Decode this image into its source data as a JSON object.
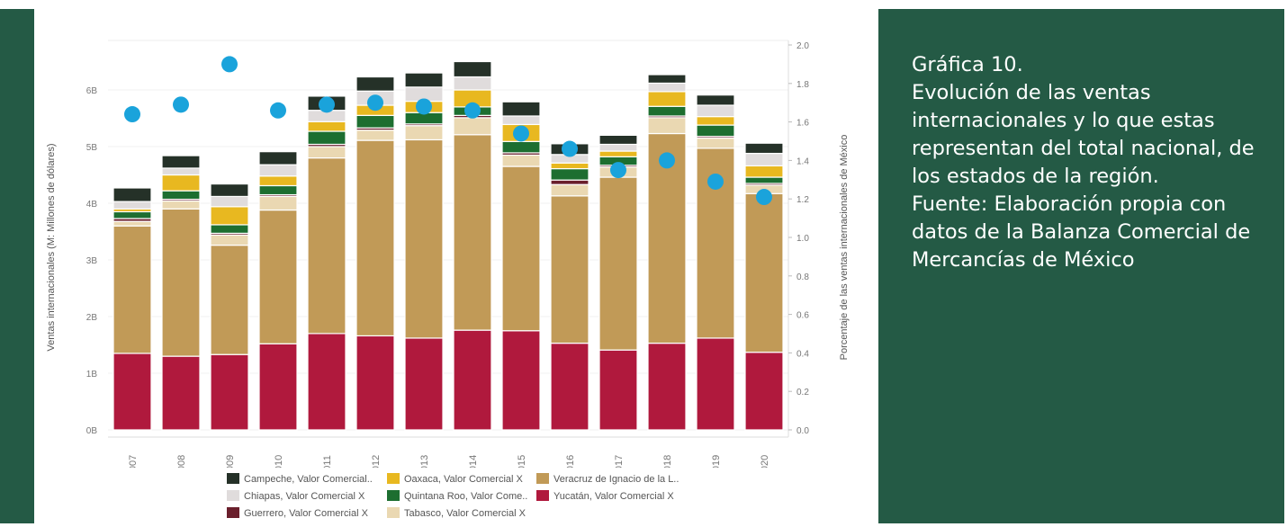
{
  "caption": {
    "line1": "Gráfica 10.",
    "line2": "Evolución de las ventas internacionales y lo que estas representan del total nacional, de los estados de la región.",
    "line3": "Fuente: Elaboración propia con datos de la Balanza Comercial de Mercancías de México"
  },
  "colors": {
    "band": "#245a45",
    "Yucatan": "#b0193d",
    "Veracruz": "#c19a57",
    "Tabasco": "#ead8b2",
    "Guerrero": "#6a1f2c",
    "QuintanaRoo": "#1d6e30",
    "Oaxaca": "#e8b820",
    "Chiapas": "#e0dcdc",
    "Campeche": "#253128",
    "points": "#1aa3db"
  },
  "chart_data": {
    "type": "bar",
    "stacked": true,
    "xlabel": "",
    "ylabel": "Ventas internacionales (M: Millones de dólares)",
    "y2label": "Porcentaje de las ventas internacionales de México",
    "ylim": [
      0,
      6.5
    ],
    "y2lim": [
      0,
      2.0
    ],
    "y_ticks": [
      "0B",
      "1B",
      "2B",
      "3B",
      "4B",
      "5B",
      "6B"
    ],
    "y_tick_values": [
      0,
      1,
      2,
      3,
      4,
      5,
      6
    ],
    "y2_ticks": [
      "0.0",
      "0.2",
      "0.4",
      "0.6",
      "0.8",
      "1.0",
      "1.2",
      "1.4",
      "1.6",
      "1.8",
      "2.0"
    ],
    "y2_tick_values": [
      0,
      0.2,
      0.4,
      0.6,
      0.8,
      1.0,
      1.2,
      1.4,
      1.6,
      1.8,
      2.0
    ],
    "categories": [
      "2007",
      "2008",
      "2009",
      "2010",
      "2011",
      "2012",
      "2013",
      "2014",
      "2015",
      "2016",
      "2017",
      "2018",
      "2019",
      "2020"
    ],
    "series": [
      {
        "name": "Yucatán, Valor Comercial X",
        "key": "Yucatan",
        "values": [
          1.35,
          1.3,
          1.33,
          1.52,
          1.7,
          1.66,
          1.62,
          1.76,
          1.75,
          1.53,
          1.41,
          1.53,
          1.62,
          1.37
        ]
      },
      {
        "name": "Veracruz de Ignacio de la L..",
        "key": "Veracruz",
        "values": [
          2.25,
          2.6,
          1.93,
          2.36,
          3.1,
          3.45,
          3.5,
          3.45,
          2.9,
          2.6,
          3.05,
          3.7,
          3.35,
          2.8
        ]
      },
      {
        "name": "Tabasco, Valor Comercial X",
        "key": "Tabasco",
        "values": [
          0.08,
          0.14,
          0.18,
          0.24,
          0.2,
          0.18,
          0.25,
          0.3,
          0.2,
          0.2,
          0.18,
          0.28,
          0.18,
          0.15
        ]
      },
      {
        "name": "Guerrero, Valor Comercial X",
        "key": "Guerrero",
        "values": [
          0.05,
          0.03,
          0.03,
          0.03,
          0.04,
          0.04,
          0.03,
          0.04,
          0.04,
          0.08,
          0.03,
          0.03,
          0.03,
          0.03
        ]
      },
      {
        "name": "Quintana Roo, Valor Come..",
        "key": "QuintanaRoo",
        "values": [
          0.12,
          0.15,
          0.15,
          0.16,
          0.23,
          0.22,
          0.2,
          0.15,
          0.2,
          0.2,
          0.15,
          0.17,
          0.2,
          0.11
        ]
      },
      {
        "name": "Oaxaca, Valor Comercial X",
        "key": "Oaxaca",
        "values": [
          0.05,
          0.28,
          0.32,
          0.17,
          0.17,
          0.18,
          0.2,
          0.3,
          0.3,
          0.1,
          0.1,
          0.26,
          0.15,
          0.2
        ]
      },
      {
        "name": "Chiapas, Valor Comercial X",
        "key": "Chiapas",
        "values": [
          0.13,
          0.12,
          0.18,
          0.2,
          0.2,
          0.25,
          0.25,
          0.23,
          0.15,
          0.15,
          0.12,
          0.15,
          0.2,
          0.22
        ]
      },
      {
        "name": "Campeche, Valor Comercial..",
        "key": "Campeche",
        "values": [
          0.24,
          0.22,
          0.22,
          0.23,
          0.25,
          0.25,
          0.25,
          0.27,
          0.25,
          0.19,
          0.16,
          0.15,
          0.18,
          0.18
        ]
      }
    ],
    "points": {
      "axis": "y2",
      "values": [
        1.64,
        1.69,
        1.9,
        1.66,
        1.69,
        1.7,
        1.68,
        1.66,
        1.54,
        1.46,
        1.35,
        1.4,
        1.29,
        1.21
      ]
    },
    "legend": {
      "placement": "bottom",
      "order": [
        "Campeche",
        "Oaxaca",
        "Veracruz",
        "Chiapas",
        "QuintanaRoo",
        "Yucatan",
        "Guerrero",
        "Tabasco"
      ]
    }
  }
}
